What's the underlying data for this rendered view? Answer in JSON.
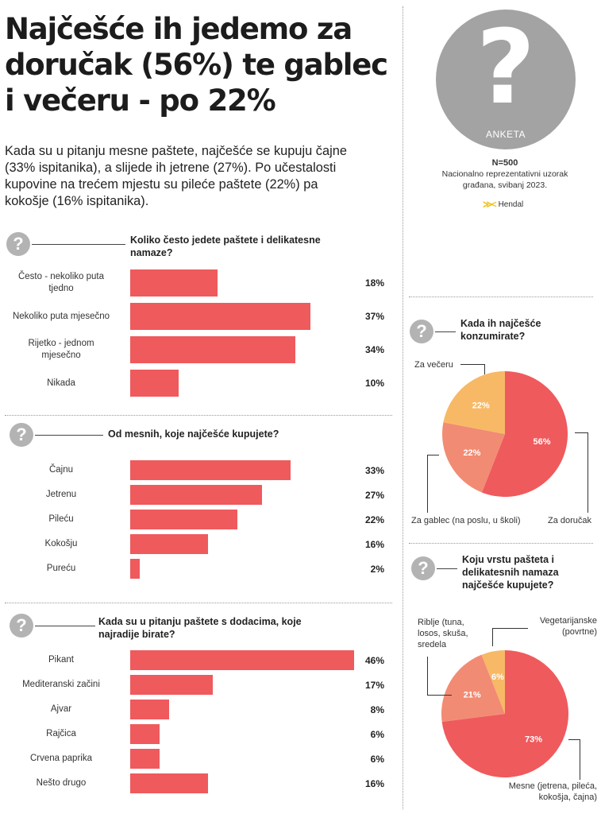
{
  "header": {
    "title_lines": [
      "Najčešće ih jedemo za",
      "doručak (56%) te gablec",
      "i večeru - po 22%"
    ],
    "intro_lines": [
      "Kada su u pitanju mesne paštete, najčešće se kupuju čajne",
      "(33% ispitanika), a slijede ih jetrene (27%). Po učestalosti",
      "kupovine na trećem mjestu su pileće paštete (22%) pa",
      "kokošje (16% ispitanika)."
    ]
  },
  "survey": {
    "badge_label": "ANKETA",
    "question_mark": "?",
    "n": "N=500",
    "desc_lines": [
      "Nacionalno reprezentativni uzorak",
      "građana, svibanj 2023."
    ],
    "logo_mark": "≫<",
    "logo_text": "Hendal",
    "colors": {
      "badge": "#a3a3a3",
      "logo_yellow": "#f2c21b",
      "logo_blue": "#8fb3d9"
    }
  },
  "colors": {
    "bar": "#ef5a5d",
    "pie_red": "#ef5a5d",
    "pie_salmon": "#f28b73",
    "pie_yellow": "#f7b966",
    "icon": "#b3b3b3"
  },
  "chart_data": [
    {
      "type": "bar",
      "title_lines": [
        "Koliko često jedete paštete i delikatesne",
        "namaze?"
      ],
      "categories": [
        [
          "Često - nekoliko puta",
          "tjedno"
        ],
        [
          "Nekoliko puta mjesečno"
        ],
        [
          "Rijetko - jednom",
          "mjesečno"
        ],
        [
          "Nikada"
        ]
      ],
      "values": [
        18,
        37,
        34,
        10
      ],
      "value_labels": [
        "18%",
        "37%",
        "34%",
        "10%"
      ],
      "unit": "%"
    },
    {
      "type": "bar",
      "title_lines": [
        "Od mesnih, koje najčešće kupujete?"
      ],
      "categories": [
        [
          "Čajnu"
        ],
        [
          "Jetrenu"
        ],
        [
          "Pileću"
        ],
        [
          "Kokošju"
        ],
        [
          "Pureću"
        ]
      ],
      "values": [
        33,
        27,
        22,
        16,
        2
      ],
      "value_labels": [
        "33%",
        "27%",
        "22%",
        "16%",
        "2%"
      ],
      "unit": "%"
    },
    {
      "type": "bar",
      "title_lines": [
        "Kada su u pitanju paštete s dodacima, koje",
        "najradije birate?"
      ],
      "categories": [
        [
          "Pikant"
        ],
        [
          "Mediteranski začini"
        ],
        [
          "Ajvar"
        ],
        [
          "Rajčica"
        ],
        [
          "Crvena paprika"
        ],
        [
          "Nešto drugo"
        ]
      ],
      "values": [
        46,
        17,
        8,
        6,
        6,
        16
      ],
      "value_labels": [
        "46%",
        "17%",
        "8%",
        "6%",
        "6%",
        "16%"
      ],
      "unit": "%"
    },
    {
      "type": "pie",
      "title_lines": [
        "Kada ih najčešće",
        "konzumirate?"
      ],
      "slices": [
        {
          "label_lines": [
            "Za doručak"
          ],
          "value": 56,
          "value_label": "56%",
          "color": "#ef5a5d"
        },
        {
          "label_lines": [
            "Za gablec (na poslu, u školi)"
          ],
          "value": 22,
          "value_label": "22%",
          "color": "#f28b73"
        },
        {
          "label_lines": [
            "Za večeru"
          ],
          "value": 22,
          "value_label": "22%",
          "color": "#f7b966"
        }
      ]
    },
    {
      "type": "pie",
      "title_lines": [
        "Koju vrstu pašteta i",
        "delikatesnih namaza",
        "najčešće kupujete?"
      ],
      "slices": [
        {
          "label_lines": [
            "Mesne (jetrena, pileća,",
            "kokošja, čajna)"
          ],
          "value": 73,
          "value_label": "73%",
          "color": "#ef5a5d"
        },
        {
          "label_lines": [
            "Riblje (tuna,",
            "losos, skuša,",
            "sredela"
          ],
          "value": 21,
          "value_label": "21%",
          "color": "#f28b73"
        },
        {
          "label_lines": [
            "Vegetarijanske",
            "(povrtne)"
          ],
          "value": 6,
          "value_label": "6%",
          "color": "#f7b966"
        }
      ]
    }
  ]
}
